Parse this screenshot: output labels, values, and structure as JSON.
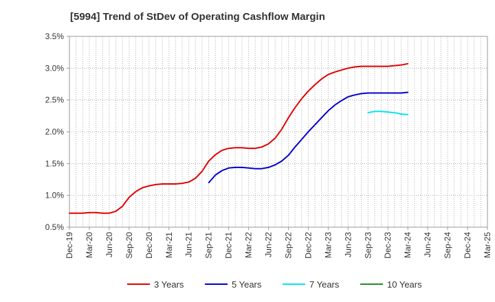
{
  "chart_data": {
    "type": "line",
    "title": "[5994]  Trend of StDev of Operating Cashflow Margin",
    "xlabel": "",
    "ylabel": "",
    "x_tick_labels": [
      "Dec-19",
      "Mar-20",
      "Jun-20",
      "Sep-20",
      "Dec-20",
      "Mar-21",
      "Jun-21",
      "Sep-21",
      "Dec-21",
      "Mar-22",
      "Jun-22",
      "Sep-22",
      "Dec-22",
      "Mar-23",
      "Jun-23",
      "Sep-23",
      "Dec-23",
      "Mar-24",
      "Jun-24",
      "Sep-24",
      "Dec-24",
      "Mar-25"
    ],
    "y_ticks": [
      0.5,
      1.0,
      1.5,
      2.0,
      2.5,
      3.0,
      3.5
    ],
    "y_tick_labels": [
      "0.5%",
      "1.0%",
      "1.5%",
      "2.0%",
      "2.5%",
      "3.0%",
      "3.5%"
    ],
    "ylim": [
      0.5,
      3.5
    ],
    "grid": true,
    "legend_position": "bottom",
    "months": [
      "Dec-19",
      "Jan-20",
      "Feb-20",
      "Mar-20",
      "Apr-20",
      "May-20",
      "Jun-20",
      "Jul-20",
      "Aug-20",
      "Sep-20",
      "Oct-20",
      "Nov-20",
      "Dec-20",
      "Jan-21",
      "Feb-21",
      "Mar-21",
      "Apr-21",
      "May-21",
      "Jun-21",
      "Jul-21",
      "Aug-21",
      "Sep-21",
      "Oct-21",
      "Nov-21",
      "Dec-21",
      "Jan-22",
      "Feb-22",
      "Mar-22",
      "Apr-22",
      "May-22",
      "Jun-22",
      "Jul-22",
      "Aug-22",
      "Sep-22",
      "Oct-22",
      "Nov-22",
      "Dec-22",
      "Jan-23",
      "Feb-23",
      "Mar-23",
      "Apr-23",
      "May-23",
      "Jun-23",
      "Jul-23",
      "Aug-23",
      "Sep-23",
      "Oct-23",
      "Nov-23",
      "Dec-23",
      "Jan-24",
      "Feb-24",
      "Mar-24",
      "Apr-24",
      "May-24",
      "Jun-24",
      "Jul-24",
      "Aug-24",
      "Sep-24",
      "Oct-24",
      "Nov-24",
      "Dec-24",
      "Jan-25",
      "Feb-25",
      "Mar-25"
    ],
    "series": [
      {
        "name": "3 Years",
        "color": "#e00000",
        "start": "Dec-19",
        "values": [
          0.72,
          0.72,
          0.72,
          0.73,
          0.73,
          0.72,
          0.72,
          0.75,
          0.83,
          0.97,
          1.06,
          1.12,
          1.15,
          1.17,
          1.18,
          1.18,
          1.18,
          1.19,
          1.21,
          1.27,
          1.38,
          1.54,
          1.64,
          1.71,
          1.74,
          1.75,
          1.75,
          1.74,
          1.74,
          1.76,
          1.81,
          1.9,
          2.04,
          2.22,
          2.38,
          2.52,
          2.64,
          2.74,
          2.83,
          2.9,
          2.94,
          2.97,
          3.0,
          3.02,
          3.03,
          3.03,
          3.03,
          3.03,
          3.03,
          3.04,
          3.05,
          3.07
        ]
      },
      {
        "name": "5 Years",
        "color": "#0000cc",
        "start": "Sep-21",
        "values": [
          1.2,
          1.32,
          1.39,
          1.43,
          1.44,
          1.44,
          1.43,
          1.42,
          1.42,
          1.44,
          1.48,
          1.54,
          1.63,
          1.76,
          1.88,
          2.0,
          2.11,
          2.22,
          2.33,
          2.42,
          2.49,
          2.55,
          2.58,
          2.6,
          2.61,
          2.61,
          2.61,
          2.61,
          2.61,
          2.61,
          2.62
        ]
      },
      {
        "name": "7 Years",
        "color": "#00e5ee",
        "start": "Sep-23",
        "values": [
          2.3,
          2.32,
          2.32,
          2.31,
          2.3,
          2.28,
          2.27
        ]
      },
      {
        "name": "10 Years",
        "color": "#228b22",
        "start": "",
        "values": []
      }
    ]
  }
}
